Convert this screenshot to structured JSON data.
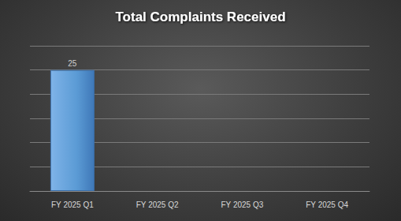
{
  "chart_data": {
    "type": "bar",
    "title": "Total Complaints Received",
    "categories": [
      "FY 2025 Q1",
      "FY 2025 Q2",
      "FY 2025 Q3",
      "FY 2025 Q4"
    ],
    "values": [
      25,
      null,
      null,
      null
    ],
    "color": "#5b9bd5",
    "ylim": [
      0,
      30
    ],
    "yticks": [
      0,
      5,
      10,
      15,
      20,
      25,
      30
    ],
    "grid": true,
    "data_labels": true,
    "tick_labels": "x"
  }
}
